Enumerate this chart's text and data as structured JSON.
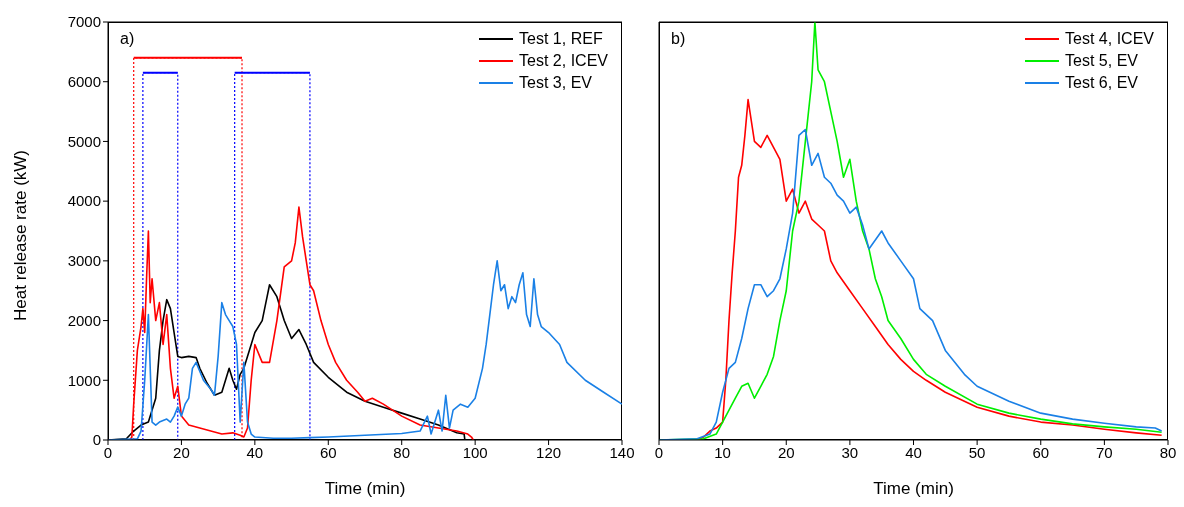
{
  "chart_data": [
    {
      "type": "line",
      "xlabel": "Time (min)",
      "ylabel": "Heat release rate (kW)",
      "xlim": [
        0,
        140
      ],
      "xticks": [
        0,
        20,
        40,
        60,
        80,
        100,
        120,
        140
      ],
      "ylim": [
        0,
        7000
      ],
      "yticks": [
        0,
        1000,
        2000,
        3000,
        4000,
        5000,
        6000,
        7000
      ],
      "grid": false,
      "legend": "top right",
      "marker": "none",
      "line_style": "solid",
      "annotations": [
        "a)"
      ],
      "series": [
        {
          "color": "#ff0000",
          "line_style": "dotted",
          "x": [
            7,
            7,
            36.5,
            36.5
          ],
          "values": [
            0,
            6400,
            6400,
            0
          ]
        },
        {
          "color": "#ff0000",
          "x": [
            7,
            36.5
          ],
          "values": [
            6400,
            6400
          ]
        },
        {
          "color": "#0000ff",
          "line_style": "dotted",
          "x": [
            9.5,
            9.5,
            19,
            19
          ],
          "values": [
            0,
            6150,
            6150,
            0
          ]
        },
        {
          "color": "#0000ff",
          "x": [
            9.5,
            19
          ],
          "values": [
            6150,
            6150
          ]
        },
        {
          "color": "#0000ff",
          "line_style": "dotted",
          "x": [
            34.5,
            34.5,
            55,
            55
          ],
          "values": [
            0,
            6150,
            6150,
            0
          ]
        },
        {
          "color": "#0000ff",
          "x": [
            34.5,
            55
          ],
          "values": [
            6150,
            6150
          ]
        },
        {
          "name": "Test 1, REF",
          "color": "#000000",
          "x": [
            0,
            5,
            7,
            9,
            11,
            13,
            14,
            15,
            16,
            17,
            18,
            19,
            20,
            22,
            24,
            25,
            27,
            29,
            31,
            32,
            33,
            34,
            35,
            36,
            37,
            39,
            40,
            42,
            43,
            44,
            46,
            48,
            50,
            52,
            54,
            56,
            60,
            65,
            70,
            75,
            80,
            85,
            90,
            95,
            97,
            97.2
          ],
          "values": [
            0,
            20,
            150,
            250,
            300,
            700,
            1500,
            2000,
            2350,
            2200,
            1800,
            1400,
            1380,
            1400,
            1380,
            1200,
            950,
            750,
            800,
            1000,
            1200,
            1000,
            850,
            1100,
            1200,
            1600,
            1800,
            2000,
            2300,
            2600,
            2400,
            2000,
            1700,
            1850,
            1600,
            1300,
            1050,
            800,
            650,
            550,
            450,
            350,
            250,
            120,
            100,
            0
          ]
        },
        {
          "name": "Test 2, ICEV",
          "color": "#ff0000",
          "x": [
            0,
            6,
            6.5,
            7,
            8,
            9,
            9.5,
            10,
            10.5,
            11,
            11.5,
            12,
            13,
            14,
            15,
            16,
            17,
            18,
            19,
            20,
            22,
            25,
            28,
            31,
            34,
            36,
            37,
            38,
            39,
            40,
            42,
            44,
            46,
            48,
            50,
            51,
            52,
            53,
            54,
            55,
            56,
            58,
            60,
            62,
            65,
            68,
            70,
            72,
            75,
            80,
            85,
            90,
            95,
            98,
            99,
            99.5
          ],
          "values": [
            0,
            0,
            50,
            600,
            1500,
            1900,
            2200,
            1800,
            2700,
            3500,
            2300,
            2700,
            2000,
            2300,
            1600,
            2100,
            1200,
            700,
            900,
            400,
            250,
            200,
            150,
            100,
            120,
            80,
            50,
            200,
            1000,
            1600,
            1300,
            1300,
            2000,
            2900,
            3000,
            3300,
            3900,
            3400,
            3000,
            2600,
            2500,
            2000,
            1600,
            1300,
            1000,
            800,
            650,
            700,
            600,
            400,
            250,
            200,
            150,
            100,
            50,
            0
          ]
        },
        {
          "name": "Test 3, EV",
          "color": "#1a80e6",
          "x": [
            0,
            8,
            9,
            10,
            11,
            12,
            13,
            14,
            16,
            17,
            18,
            19,
            20,
            21,
            22,
            23,
            24,
            26,
            28,
            29,
            30,
            31,
            32,
            33,
            34,
            35,
            36,
            37,
            38,
            39,
            40,
            45,
            50,
            55,
            60,
            70,
            80,
            85,
            87,
            88,
            90,
            91,
            92,
            93,
            94,
            96,
            98,
            100,
            102,
            103,
            104,
            105,
            106,
            107,
            108,
            109,
            110,
            111,
            112,
            113,
            114,
            115,
            116,
            117,
            118,
            120,
            123,
            125,
            130,
            135,
            140
          ],
          "values": [
            0,
            20,
            150,
            1000,
            2100,
            300,
            250,
            300,
            350,
            300,
            400,
            550,
            400,
            600,
            700,
            1200,
            1300,
            1000,
            850,
            750,
            1400,
            2300,
            2100,
            2000,
            1900,
            1600,
            300,
            1300,
            300,
            100,
            50,
            30,
            30,
            40,
            50,
            80,
            110,
            150,
            400,
            100,
            500,
            150,
            750,
            200,
            500,
            600,
            550,
            700,
            1200,
            1600,
            2100,
            2600,
            3000,
            2500,
            2600,
            2200,
            2400,
            2300,
            2600,
            2800,
            2100,
            1900,
            2700,
            2100,
            1900,
            1800,
            1600,
            1300,
            1000,
            800,
            600
          ]
        }
      ]
    },
    {
      "type": "line",
      "xlabel": "Time (min)",
      "xlim": [
        0,
        80
      ],
      "xticks": [
        0,
        10,
        20,
        30,
        40,
        50,
        60,
        70,
        80
      ],
      "ylim": [
        0,
        7000
      ],
      "yticks": [
        0,
        1000,
        2000,
        3000,
        4000,
        5000,
        6000,
        7000
      ],
      "tick_labels": "x",
      "grid": false,
      "legend": "top right",
      "marker": "none",
      "line_style": "solid",
      "annotations": [
        "b)"
      ],
      "series": [
        {
          "name": "Test 4, ICEV",
          "color": "#ff0000",
          "x": [
            0,
            6,
            7,
            8,
            9,
            10,
            10.5,
            11,
            11.5,
            12,
            12.5,
            13,
            13.5,
            14,
            15,
            16,
            17,
            18,
            19,
            20,
            21,
            22,
            23,
            24,
            25,
            26,
            27,
            28,
            30,
            32,
            34,
            36,
            38,
            40,
            42,
            45,
            50,
            55,
            60,
            65,
            70,
            75,
            79
          ],
          "values": [
            0,
            0,
            50,
            150,
            200,
            300,
            1000,
            2000,
            2800,
            3500,
            4400,
            4600,
            5100,
            5700,
            5000,
            4900,
            5100,
            4900,
            4700,
            4000,
            4200,
            3800,
            4000,
            3700,
            3600,
            3500,
            3000,
            2800,
            2500,
            2200,
            1900,
            1600,
            1350,
            1150,
            1000,
            800,
            550,
            400,
            300,
            250,
            180,
            120,
            80
          ]
        },
        {
          "name": "Test 5, EV",
          "color": "#00ee00",
          "x": [
            0,
            7,
            9,
            10,
            11,
            12,
            13,
            14,
            15,
            16,
            17,
            18,
            19,
            20,
            21,
            22,
            23,
            24,
            24.5,
            25,
            26,
            27,
            28,
            29,
            30,
            31,
            32,
            33,
            34,
            35,
            36,
            38,
            40,
            42,
            45,
            50,
            55,
            60,
            65,
            70,
            75,
            79
          ],
          "values": [
            0,
            20,
            100,
            300,
            500,
            700,
            900,
            950,
            700,
            900,
            1100,
            1400,
            2000,
            2500,
            3500,
            4000,
            5000,
            6000,
            7000,
            6200,
            6000,
            5500,
            5000,
            4400,
            4700,
            4000,
            3500,
            3200,
            2700,
            2400,
            2000,
            1700,
            1350,
            1100,
            900,
            600,
            450,
            350,
            270,
            220,
            180,
            130
          ]
        },
        {
          "name": "Test 6, EV",
          "color": "#1a80e6",
          "x": [
            0,
            6,
            8,
            9,
            10,
            11,
            12,
            13,
            14,
            15,
            16,
            17,
            18,
            19,
            20,
            21,
            22,
            23,
            24,
            25,
            26,
            27,
            28,
            29,
            30,
            31,
            32,
            33,
            35,
            36,
            38,
            40,
            41,
            43,
            45,
            48,
            50,
            55,
            60,
            65,
            70,
            75,
            78,
            79
          ],
          "values": [
            0,
            20,
            100,
            300,
            800,
            1200,
            1300,
            1700,
            2200,
            2600,
            2600,
            2400,
            2500,
            2700,
            3200,
            3800,
            5100,
            5200,
            4600,
            4800,
            4400,
            4300,
            4100,
            4000,
            3800,
            3900,
            3600,
            3200,
            3500,
            3300,
            3000,
            2700,
            2200,
            2000,
            1500,
            1100,
            900,
            650,
            450,
            350,
            280,
            220,
            200,
            150
          ]
        }
      ]
    }
  ]
}
